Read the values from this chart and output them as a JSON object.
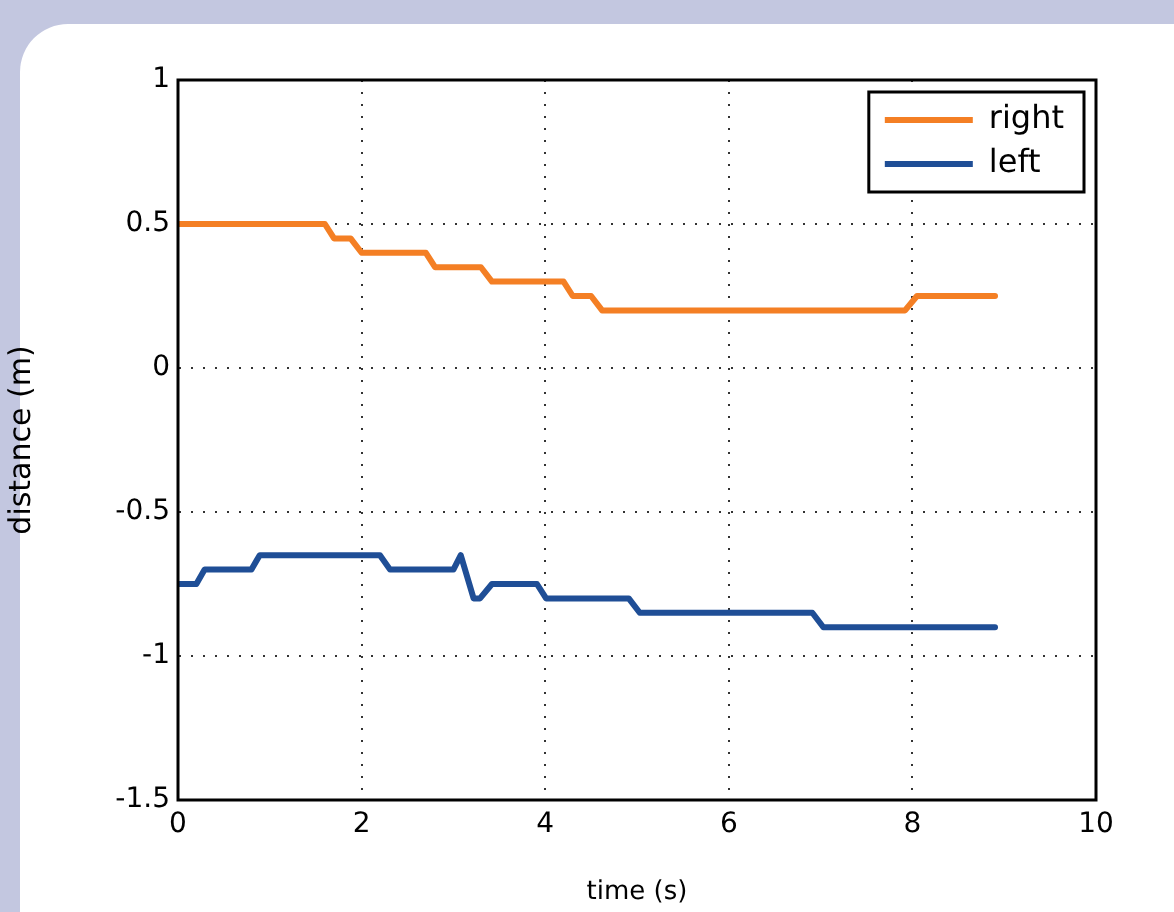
{
  "chart_data": {
    "type": "line",
    "xlabel": "time (s)",
    "ylabel": "distance (m)",
    "xlim": [
      0,
      10
    ],
    "ylim": [
      -1.5,
      1
    ],
    "xticks": [
      0,
      2,
      4,
      6,
      8,
      10
    ],
    "yticks": [
      -1.5,
      -1,
      -0.5,
      0,
      0.5,
      1
    ],
    "grid": true,
    "legend": "top right",
    "marker": "none",
    "line_style": "solid",
    "series": [
      {
        "name": "right",
        "color": "#f47f24",
        "x": [
          0,
          1.6,
          1.7,
          1.88,
          2.0,
          2.7,
          2.8,
          3.3,
          3.42,
          4.2,
          4.3,
          4.5,
          4.62,
          7.92,
          8.05,
          8.9
        ],
        "values": [
          0.5,
          0.5,
          0.45,
          0.45,
          0.4,
          0.4,
          0.35,
          0.35,
          0.3,
          0.3,
          0.25,
          0.25,
          0.2,
          0.2,
          0.25,
          0.25
        ]
      },
      {
        "name": "left",
        "color": "#1f4e96",
        "x": [
          0,
          0.2,
          0.29,
          0.8,
          0.89,
          2.2,
          2.31,
          3.0,
          3.08,
          3.22,
          3.29,
          3.42,
          3.91,
          4.01,
          4.91,
          5.03,
          6.91,
          7.03,
          8.9
        ],
        "values": [
          -0.75,
          -0.75,
          -0.7,
          -0.7,
          -0.65,
          -0.65,
          -0.7,
          -0.7,
          -0.65,
          -0.8,
          -0.8,
          -0.75,
          -0.75,
          -0.8,
          -0.8,
          -0.85,
          -0.85,
          -0.9,
          -0.9
        ]
      }
    ]
  }
}
